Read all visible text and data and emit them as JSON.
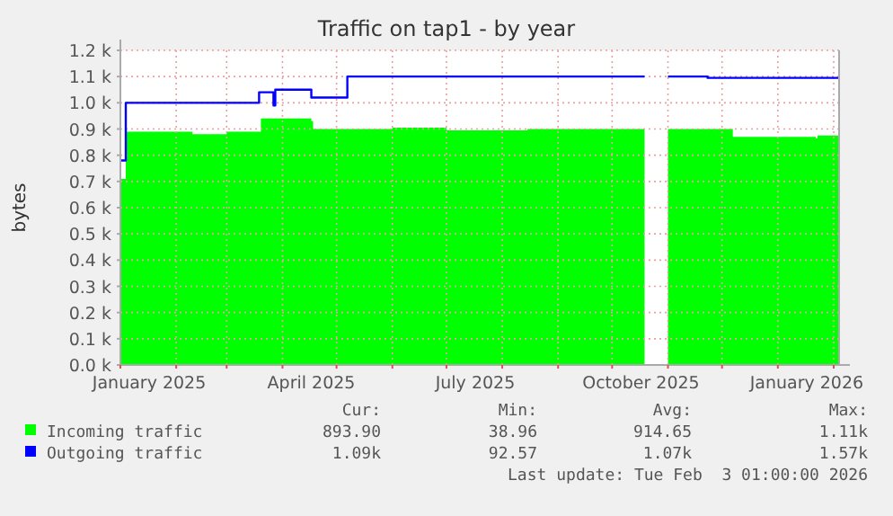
{
  "chart_data": {
    "type": "area",
    "title": "Traffic on tap1 - by year",
    "ylabel": "bytes",
    "xlim": [
      "2025-01-01",
      "2026-02-04"
    ],
    "ylim": [
      0,
      1200
    ],
    "xticks": [
      {
        "value": "2025-01-01",
        "label": null
      },
      {
        "value": "2025-02-01",
        "label": null
      },
      {
        "value": "2025-03-01",
        "label": null
      },
      {
        "value": "2025-04-01",
        "label": null
      },
      {
        "value": "2025-05-01",
        "label": null
      },
      {
        "value": "2025-06-01",
        "label": null
      },
      {
        "value": "2025-07-01",
        "label": null
      },
      {
        "value": "2025-08-01",
        "label": null
      },
      {
        "value": "2025-09-01",
        "label": null
      },
      {
        "value": "2025-10-01",
        "label": null
      },
      {
        "value": "2025-11-01",
        "label": null
      },
      {
        "value": "2025-12-01",
        "label": null
      },
      {
        "value": "2026-01-01",
        "label": null
      },
      {
        "value": "2026-02-01",
        "label": null
      },
      {
        "value": "2025-01-17",
        "label": "January 2025"
      },
      {
        "value": "2025-04-17",
        "label": "April 2025"
      },
      {
        "value": "2025-07-17",
        "label": "July 2025"
      },
      {
        "value": "2025-10-17",
        "label": "October 2025"
      },
      {
        "value": "2026-01-17",
        "label": "January 2026"
      }
    ],
    "yticks": [
      {
        "value": 0,
        "label": "0.0 k"
      },
      {
        "value": 100,
        "label": "0.1 k"
      },
      {
        "value": 200,
        "label": "0.2 k"
      },
      {
        "value": 300,
        "label": "0.3 k"
      },
      {
        "value": 400,
        "label": "0.4 k"
      },
      {
        "value": 500,
        "label": "0.5 k"
      },
      {
        "value": 600,
        "label": "0.6 k"
      },
      {
        "value": 700,
        "label": "0.7 k"
      },
      {
        "value": 800,
        "label": "0.8 k"
      },
      {
        "value": 900,
        "label": "0.9 k"
      },
      {
        "value": 1000,
        "label": "1.0 k"
      },
      {
        "value": 1100,
        "label": "1.1 k"
      },
      {
        "value": 1200,
        "label": "1.2 k"
      }
    ],
    "grid": true,
    "legend": "bottom",
    "series": [
      {
        "name": "Incoming traffic",
        "type": "area",
        "color": "#00ff00",
        "x": [
          "2025-01-01",
          "2025-01-03",
          "2025-01-04",
          "2025-02-01",
          "2025-02-10",
          "2025-03-01",
          "2025-03-19",
          "2025-03-20",
          "2025-04-17",
          "2025-04-18",
          "2025-06-01",
          "2025-07-01",
          "2025-08-15",
          "2025-10-19",
          "2025-10-25",
          "2025-11-01",
          "2025-11-23",
          "2025-12-07",
          "2026-01-22",
          "2026-01-23",
          "2026-02-04"
        ],
        "values": [
          710,
          710,
          890,
          890,
          880,
          890,
          890,
          940,
          930,
          900,
          905,
          895,
          900,
          900,
          null,
          900,
          900,
          870,
          865,
          875,
          875
        ]
      },
      {
        "name": "Outgoing traffic",
        "type": "line",
        "color": "#0000ff",
        "x": [
          "2025-01-01",
          "2025-01-03",
          "2025-01-04",
          "2025-03-18",
          "2025-03-19",
          "2025-03-26",
          "2025-03-27",
          "2025-03-28",
          "2025-04-16",
          "2025-04-17",
          "2025-05-05",
          "2025-05-07",
          "2025-10-19",
          "2025-10-25",
          "2025-11-01",
          "2025-11-20",
          "2025-11-23",
          "2026-02-04"
        ],
        "values": [
          780,
          780,
          1000,
          1000,
          1040,
          1040,
          990,
          1050,
          1050,
          1020,
          1020,
          1100,
          1100,
          null,
          1100,
          1100,
          1095,
          1095
        ]
      }
    ],
    "annotations": [
      "Cur:",
      "Min:",
      "Avg:",
      "Max:",
      "893.90",
      "38.96",
      "914.65",
      "1.11k",
      "1.09k",
      "92.57",
      "1.07k",
      "1.57k",
      "Last update: Tue Feb  3 01:00:00 2026"
    ]
  }
}
